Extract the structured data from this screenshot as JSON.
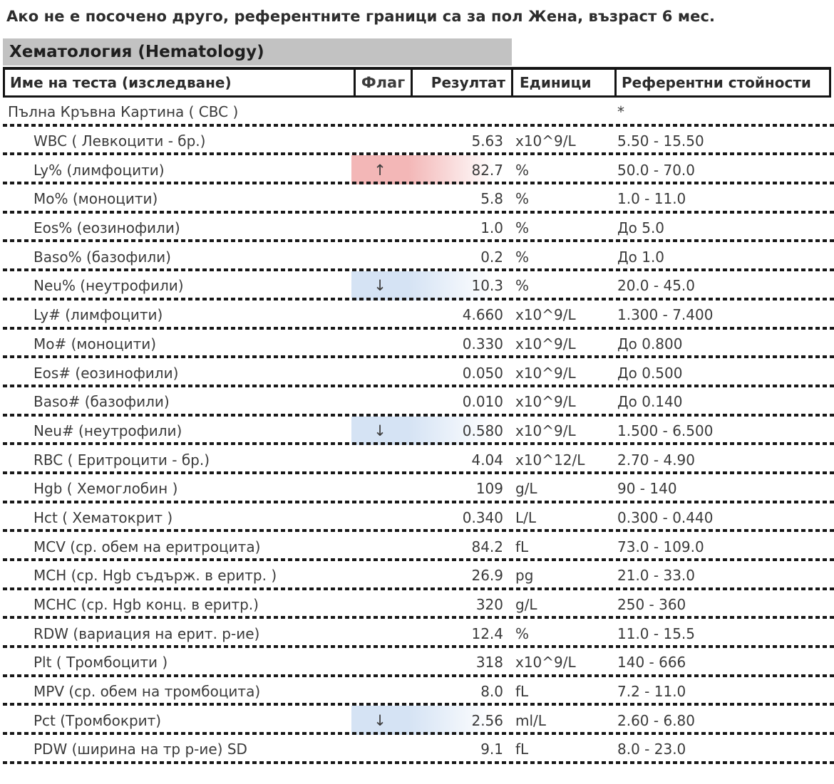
{
  "note": "Ако не е посочено друго, референтните граници са за пол Жена, възраст 6 мес.",
  "section": {
    "title": "Хематология (Hematology)"
  },
  "colors": {
    "flag_high_bg": "#f3b7b7",
    "flag_low_bg": "#d5e3f4",
    "section_bar_bg": "#c2c2c2"
  },
  "table": {
    "headers": {
      "name": "Име на теста (изследване)",
      "flag": "Флаг",
      "result": "Резултат",
      "units": "Единици",
      "reference": "Референтни стойности"
    },
    "rows": [
      {
        "name": "Пълна Кръвна Картина ( CBC )",
        "flag": "",
        "result": "",
        "units": "",
        "reference": "*",
        "indent": false,
        "flag_type": "none"
      },
      {
        "name": "WBC ( Левкоцити - бр.)",
        "flag": "",
        "result": "5.63",
        "units": "x10^9/L",
        "reference": "5.50 - 15.50",
        "indent": true,
        "flag_type": "none"
      },
      {
        "name": "Ly% (лимфоцити)",
        "flag": "↑",
        "result": "82.7",
        "units": "%",
        "reference": "50.0 - 70.0",
        "indent": true,
        "flag_type": "high"
      },
      {
        "name": "Mo% (моноцити)",
        "flag": "",
        "result": "5.8",
        "units": "%",
        "reference": "1.0 - 11.0",
        "indent": true,
        "flag_type": "none"
      },
      {
        "name": "Eos% (еозинофили)",
        "flag": "",
        "result": "1.0",
        "units": "%",
        "reference": "До 5.0",
        "indent": true,
        "flag_type": "none"
      },
      {
        "name": "Baso% (базофили)",
        "flag": "",
        "result": "0.2",
        "units": "%",
        "reference": "До 1.0",
        "indent": true,
        "flag_type": "none"
      },
      {
        "name": "Neu% (неутрофили)",
        "flag": "↓",
        "result": "10.3",
        "units": "%",
        "reference": "20.0 - 45.0",
        "indent": true,
        "flag_type": "low"
      },
      {
        "name": "Ly# (лимфоцити)",
        "flag": "",
        "result": "4.660",
        "units": "x10^9/L",
        "reference": "1.300 - 7.400",
        "indent": true,
        "flag_type": "none"
      },
      {
        "name": "Mo# (моноцити)",
        "flag": "",
        "result": "0.330",
        "units": "x10^9/L",
        "reference": "До 0.800",
        "indent": true,
        "flag_type": "none"
      },
      {
        "name": "Eos# (еозинофили)",
        "flag": "",
        "result": "0.050",
        "units": "x10^9/L",
        "reference": "До 0.500",
        "indent": true,
        "flag_type": "none"
      },
      {
        "name": "Baso# (базофили)",
        "flag": "",
        "result": "0.010",
        "units": "x10^9/L",
        "reference": "До 0.140",
        "indent": true,
        "flag_type": "none"
      },
      {
        "name": "Neu# (неутрофили)",
        "flag": "↓",
        "result": "0.580",
        "units": "x10^9/L",
        "reference": "1.500 - 6.500",
        "indent": true,
        "flag_type": "low"
      },
      {
        "name": "RBC ( Еритроцити - бр.)",
        "flag": "",
        "result": "4.04",
        "units": "x10^12/L",
        "reference": "2.70 - 4.90",
        "indent": true,
        "flag_type": "none"
      },
      {
        "name": "Hgb ( Хемоглобин )",
        "flag": "",
        "result": "109",
        "units": "g/L",
        "reference": "90 - 140",
        "indent": true,
        "flag_type": "none"
      },
      {
        "name": "Hct ( Хематокрит )",
        "flag": "",
        "result": "0.340",
        "units": "L/L",
        "reference": "0.300 - 0.440",
        "indent": true,
        "flag_type": "none"
      },
      {
        "name": "MCV (ср. обем на еритроцита)",
        "flag": "",
        "result": "84.2",
        "units": "fL",
        "reference": "73.0 - 109.0",
        "indent": true,
        "flag_type": "none"
      },
      {
        "name": "MCH (ср. Hgb съдърж. в еритр. )",
        "flag": "",
        "result": "26.9",
        "units": "pg",
        "reference": "21.0 - 33.0",
        "indent": true,
        "flag_type": "none"
      },
      {
        "name": "MCHC (ср. Hgb конц. в еритр.)",
        "flag": "",
        "result": "320",
        "units": "g/L",
        "reference": "250 - 360",
        "indent": true,
        "flag_type": "none"
      },
      {
        "name": "RDW (вариация на ерит. р-ие)",
        "flag": "",
        "result": "12.4",
        "units": "%",
        "reference": "11.0 - 15.5",
        "indent": true,
        "flag_type": "none"
      },
      {
        "name": "Plt ( Тромбоцити )",
        "flag": "",
        "result": "318",
        "units": "x10^9/L",
        "reference": "140 - 666",
        "indent": true,
        "flag_type": "none"
      },
      {
        "name": "MPV (ср. обем на тромбоцита)",
        "flag": "",
        "result": "8.0",
        "units": "fL",
        "reference": "7.2 - 11.0",
        "indent": true,
        "flag_type": "none"
      },
      {
        "name": "Pct (Тромбокрит)",
        "flag": "↓",
        "result": "2.56",
        "units": "ml/L",
        "reference": "2.60 - 6.80",
        "indent": true,
        "flag_type": "low"
      },
      {
        "name": "PDW (ширина на тр р-ие) SD",
        "flag": "",
        "result": "9.1",
        "units": "fL",
        "reference": "8.0 - 23.0",
        "indent": true,
        "flag_type": "none"
      }
    ]
  }
}
